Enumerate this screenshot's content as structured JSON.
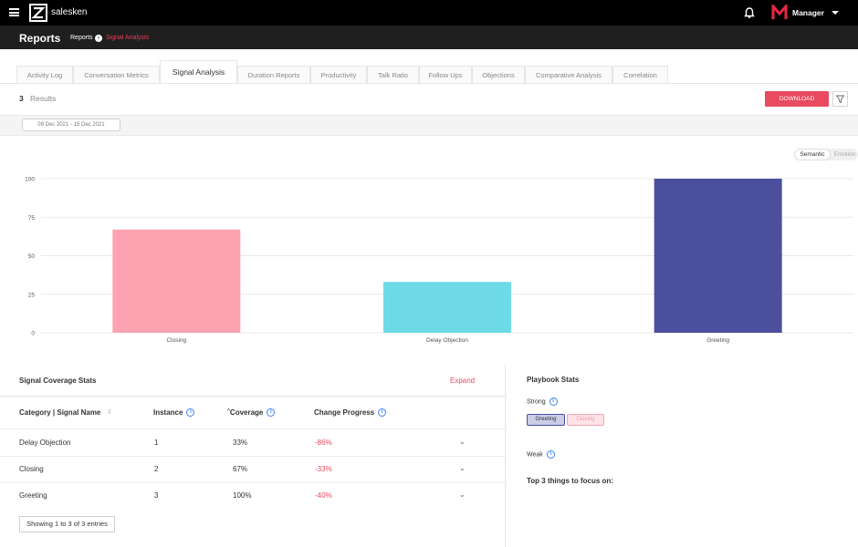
{
  "app": {
    "brand": "salesken",
    "user": "Manager"
  },
  "header": {
    "title": "Reports",
    "breadcrumb": [
      "Reports",
      "Signal Analysis"
    ]
  },
  "tabs": [
    {
      "label": "Activity Log"
    },
    {
      "label": "Conversation Metrics"
    },
    {
      "label": "Signal Analysis",
      "active": true
    },
    {
      "label": "Duration Reports"
    },
    {
      "label": "Productivity"
    },
    {
      "label": "Talk Ratio"
    },
    {
      "label": "Follow Ups"
    },
    {
      "label": "Objections"
    },
    {
      "label": "Comparative Analysis"
    },
    {
      "label": "Correlation"
    }
  ],
  "results": {
    "count": "3",
    "label": "Results"
  },
  "toolbar": {
    "download_label": "DOWNLOAD"
  },
  "filters": {
    "date_range": "09 Dec 2021 - 15 Dec 2021"
  },
  "toggle": {
    "semantic": "Semantic",
    "emotion": "Emotion"
  },
  "chart_data": {
    "type": "bar",
    "categories": [
      "Closing",
      "Delay Objection",
      "Greeting"
    ],
    "values": [
      67,
      33,
      100
    ],
    "colors": [
      "#fda3b2",
      "#6edae6",
      "#4c4f9e"
    ],
    "yticks": [
      "0",
      "25",
      "50",
      "75",
      "100"
    ],
    "ylim": [
      0,
      100
    ],
    "grid": true
  },
  "coverage": {
    "title": "Signal Coverage Stats",
    "expand_label": "Expand",
    "columns": [
      "Category | Signal Name",
      "Instance",
      "Coverage",
      "Change Progress"
    ],
    "rows": [
      {
        "name": "Delay Objection",
        "instance": "1",
        "coverage": "33%",
        "change": "-86%"
      },
      {
        "name": "Closing",
        "instance": "2",
        "coverage": "67%",
        "change": "-33%"
      },
      {
        "name": "Greeting",
        "instance": "3",
        "coverage": "100%",
        "change": "-40%"
      }
    ],
    "footer": "Showing 1 to 3 of 3 entries"
  },
  "playbook": {
    "title": "Playbook Stats",
    "strong_label": "Strong",
    "strong_tags": [
      "Greeting",
      "Closing"
    ],
    "weak_label": "Weak",
    "focus_label": "Top 3 things to focus on:"
  }
}
